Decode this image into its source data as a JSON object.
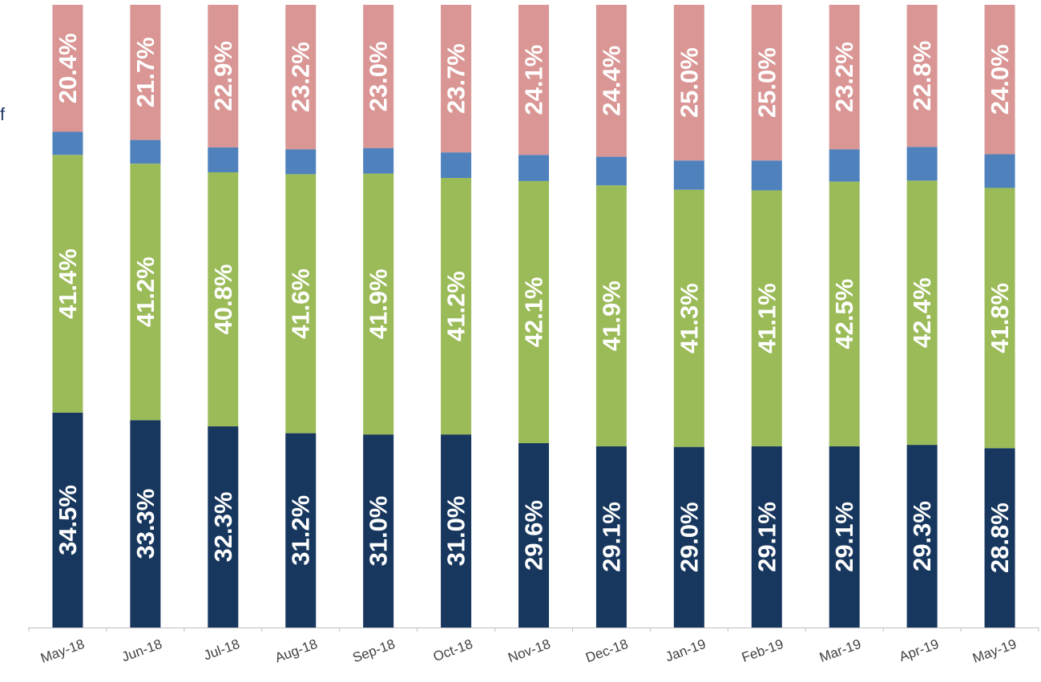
{
  "chart_data": {
    "type": "bar",
    "stacked": true,
    "percent_stacked": true,
    "title": "",
    "xlabel": "",
    "ylabel": "",
    "ylim": [
      0,
      100
    ],
    "grid": false,
    "legend": "none",
    "categories": [
      "May-18",
      "Jun-18",
      "Jul-18",
      "Aug-18",
      "Sep-18",
      "Oct-18",
      "Nov-18",
      "Dec-18",
      "Jan-19",
      "Feb-19",
      "Mar-19",
      "Apr-19",
      "May-19"
    ],
    "series": [
      {
        "color": "#17375e",
        "values": [
          34.5,
          33.3,
          32.3,
          31.2,
          31.0,
          31.0,
          29.6,
          29.1,
          29.0,
          29.1,
          29.1,
          29.3,
          28.8
        ],
        "labels": [
          "34.5%",
          "33.3%",
          "32.3%",
          "31.2%",
          "31.0%",
          "31.0%",
          "29.6%",
          "29.1%",
          "29.0%",
          "29.1%",
          "29.1%",
          "29.3%",
          "28.8%"
        ]
      },
      {
        "color": "#9bbb59",
        "values": [
          41.4,
          41.2,
          40.8,
          41.6,
          41.9,
          41.2,
          42.1,
          41.9,
          41.3,
          41.1,
          42.5,
          42.4,
          41.8
        ],
        "labels": [
          "41.4%",
          "41.2%",
          "40.8%",
          "41.6%",
          "41.9%",
          "41.2%",
          "42.1%",
          "41.9%",
          "41.3%",
          "41.1%",
          "42.5%",
          "42.4%",
          "41.8%"
        ]
      },
      {
        "color": "#4f81bd",
        "values": [
          3.7,
          3.8,
          4.0,
          4.0,
          4.1,
          4.1,
          4.2,
          4.6,
          4.7,
          4.8,
          5.2,
          5.4,
          5.4
        ],
        "labels": []
      },
      {
        "color": "#d99694",
        "values": [
          20.4,
          21.7,
          22.9,
          23.2,
          23.0,
          23.7,
          24.1,
          24.4,
          25.0,
          25.0,
          23.2,
          22.8,
          24.0
        ],
        "labels": [
          "20.4%",
          "21.7%",
          "22.9%",
          "23.2%",
          "23.0%",
          "23.7%",
          "24.1%",
          "24.4%",
          "25.0%",
          "25.0%",
          "23.2%",
          "22.8%",
          "24.0%"
        ]
      }
    ]
  },
  "edge_fragment": {
    "text": "f",
    "color": "#1f3864"
  }
}
